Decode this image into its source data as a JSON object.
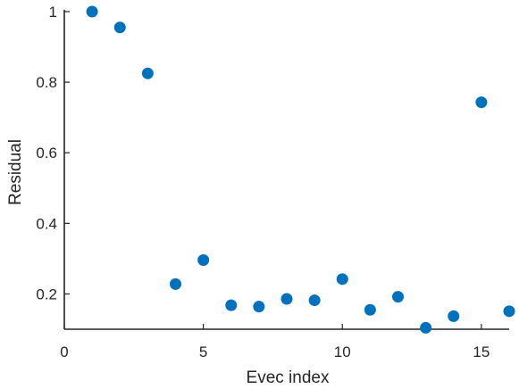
{
  "chart_data": {
    "type": "scatter",
    "title": "",
    "xlabel": "Evec index",
    "ylabel": "Residual",
    "xlim": [
      0,
      16
    ],
    "ylim": [
      0.1,
      1.0
    ],
    "grid": false,
    "legend": "none",
    "marker_color": "#0072BD",
    "x_ticks": [
      0,
      5,
      10,
      15
    ],
    "y_ticks": [
      0.2,
      0.4,
      0.6,
      0.8,
      1
    ],
    "x_tick_labels": [
      "0",
      "5",
      "10",
      "15"
    ],
    "y_tick_labels": [
      "0.2",
      "0.4",
      "0.6",
      "0.8",
      "1"
    ],
    "series": [
      {
        "x": [
          1,
          2,
          3,
          4,
          5,
          6,
          7,
          8,
          9,
          10,
          11,
          12,
          13,
          14,
          15,
          16
        ],
        "y": [
          1.0,
          0.955,
          0.825,
          0.228,
          0.296,
          0.168,
          0.164,
          0.186,
          0.182,
          0.242,
          0.155,
          0.192,
          0.104,
          0.137,
          0.743,
          0.151
        ]
      }
    ]
  }
}
